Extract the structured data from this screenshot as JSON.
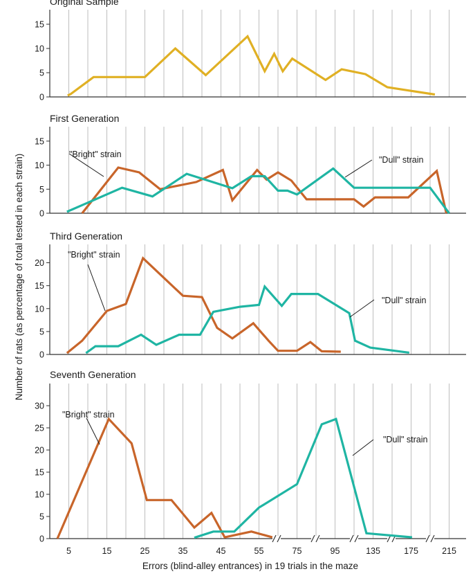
{
  "chart_data": {
    "type": "line",
    "ylabel": "Number of rats (as percentage of total tested in each strain)",
    "xlabel": "Errors (blind-alley entrances) in 19 trials in the maze",
    "x_ticks": [
      "5",
      "15",
      "25",
      "35",
      "45",
      "55",
      "75",
      "95",
      "135",
      "175",
      "215"
    ],
    "colors": {
      "bright": "#c8652a",
      "dull": "#1fb5a3",
      "sample": "#e0b024",
      "grid": "#bdbdbd",
      "axis": "#333333"
    },
    "panels": [
      {
        "title": "Original Sample",
        "ylim": [
          0,
          18
        ],
        "yticks": [
          0,
          5,
          10,
          15
        ],
        "series": [
          {
            "key": "sample",
            "name": "",
            "values": [
              [
                4.7,
                0.3
              ],
              [
                5.5,
                0.6
              ],
              [
                11.5,
                4.1
              ],
              [
                20,
                4.1
              ],
              [
                25,
                4.1
              ],
              [
                33,
                10
              ],
              [
                41,
                4.5
              ],
              [
                52,
                12.5
              ],
              [
                58,
                5.3
              ],
              [
                63,
                8.9
              ],
              [
                67.5,
                5.3
              ],
              [
                72.5,
                7.9
              ],
              [
                90,
                3.5
              ],
              [
                102,
                5.7
              ],
              [
                127,
                4.7
              ],
              [
                150,
                2
              ],
              [
                200,
                0.5
              ]
            ]
          }
        ]
      },
      {
        "title": "First Generation",
        "ylim": [
          0,
          18
        ],
        "yticks": [
          0,
          5,
          10,
          15
        ],
        "series": [
          {
            "key": "bright",
            "name": "\"Bright\" strain",
            "values": [
              [
                8.5,
                0
              ],
              [
                18,
                9.5
              ],
              [
                23.5,
                8.5
              ],
              [
                29,
                5
              ],
              [
                38.5,
                6.5
              ],
              [
                45.5,
                9
              ],
              [
                48,
                2.7
              ],
              [
                54.5,
                9
              ],
              [
                59,
                7
              ],
              [
                65,
                8.5
              ],
              [
                72,
                6.8
              ],
              [
                80,
                2.9
              ],
              [
                115,
                2.9
              ],
              [
                125,
                1.4
              ],
              [
                137,
                3.3
              ],
              [
                172,
                3.3
              ],
              [
                202,
                8.8
              ],
              [
                212,
                0
              ]
            ]
          },
          {
            "key": "dull",
            "name": "\"Dull\" strain",
            "values": [
              [
                4.5,
                0.3
              ],
              [
                19,
                5.3
              ],
              [
                27,
                3.5
              ],
              [
                36,
                8.2
              ],
              [
                48,
                5.2
              ],
              [
                53,
                7.7
              ],
              [
                58,
                7.7
              ],
              [
                65,
                4.7
              ],
              [
                70,
                4.7
              ],
              [
                75,
                3.9
              ],
              [
                94,
                9.3
              ],
              [
                115,
                5.3
              ],
              [
                145,
                5.3
              ],
              [
                195,
                5.3
              ],
              [
                215,
                0
              ]
            ]
          }
        ]
      },
      {
        "title": "Third Generation",
        "ylim": [
          0,
          24
        ],
        "yticks": [
          0,
          5,
          10,
          15,
          20
        ],
        "series": [
          {
            "key": "bright",
            "name": "\"Bright\" strain",
            "values": [
              [
                4.5,
                0.3
              ],
              [
                8.5,
                3
              ],
              [
                15,
                9.5
              ],
              [
                20,
                11
              ],
              [
                24.5,
                21
              ],
              [
                35,
                12.8
              ],
              [
                40,
                12.5
              ],
              [
                44,
                5.8
              ],
              [
                48,
                3.5
              ],
              [
                53.5,
                6.8
              ],
              [
                60,
                3
              ],
              [
                65,
                0.8
              ],
              [
                75,
                0.8
              ],
              [
                82,
                2.7
              ],
              [
                88,
                0.7
              ],
              [
                101,
                0.6
              ]
            ]
          },
          {
            "key": "dull",
            "name": "\"Dull\" strain",
            "values": [
              [
                9.5,
                0.3
              ],
              [
                12,
                1.8
              ],
              [
                18,
                1.8
              ],
              [
                24,
                4.3
              ],
              [
                28,
                2.1
              ],
              [
                34,
                4.3
              ],
              [
                39.5,
                4.3
              ],
              [
                43,
                9.3
              ],
              [
                50,
                10.4
              ],
              [
                55,
                10.8
              ],
              [
                58,
                14.8
              ],
              [
                67,
                10.6
              ],
              [
                72,
                13.2
              ],
              [
                86,
                13.2
              ],
              [
                110,
                9
              ],
              [
                116,
                3
              ],
              [
                132,
                1.5
              ],
              [
                173,
                0.4
              ]
            ]
          }
        ]
      },
      {
        "title": "Seventh Generation",
        "ylim": [
          0,
          35
        ],
        "yticks": [
          0,
          5,
          10,
          15,
          20,
          25,
          30
        ],
        "series": [
          {
            "key": "bright",
            "name": "\"Bright\" strain",
            "values": [
              [
                2,
                0
              ],
              [
                15.5,
                27
              ],
              [
                21.5,
                21.5
              ],
              [
                25.5,
                8.7
              ],
              [
                32,
                8.7
              ],
              [
                38,
                2.5
              ],
              [
                42.5,
                5.8
              ],
              [
                46,
                0.3
              ],
              [
                53,
                1.6
              ],
              [
                62,
                0.3
              ]
            ]
          },
          {
            "key": "dull",
            "name": "\"Dull\" strain",
            "values": [
              [
                38,
                0.2
              ],
              [
                43,
                1.6
              ],
              [
                48.5,
                1.6
              ],
              [
                55,
                7
              ],
              [
                75,
                12.3
              ],
              [
                88,
                25.8
              ],
              [
                96,
                27
              ],
              [
                128,
                1.2
              ],
              [
                176,
                0.3
              ]
            ]
          }
        ]
      }
    ],
    "annotations": [
      {
        "panel": 1,
        "text": "\"Bright\" strain",
        "points": [
          [
            100,
            222
          ],
          [
            150,
            255
          ]
        ]
      },
      {
        "panel": 1,
        "text": "\"Dull\" strain",
        "points": [
          [
            538,
            231
          ],
          [
            499,
            256
          ]
        ]
      },
      {
        "panel": 2,
        "text": "\"Bright\" strain",
        "points": [
          [
            127,
            382
          ],
          [
            152,
            449
          ]
        ]
      },
      {
        "panel": 2,
        "text": "\"Dull\" strain",
        "points": [
          [
            541,
            433
          ],
          [
            506,
            458
          ]
        ]
      },
      {
        "panel": 3,
        "text": "\"Bright\" strain",
        "points": [
          [
            125,
            604
          ],
          [
            144,
            642
          ]
        ]
      },
      {
        "panel": 3,
        "text": "\"Dull\" strain",
        "points": [
          [
            540,
            635
          ],
          [
            510,
            658
          ]
        ]
      }
    ]
  }
}
